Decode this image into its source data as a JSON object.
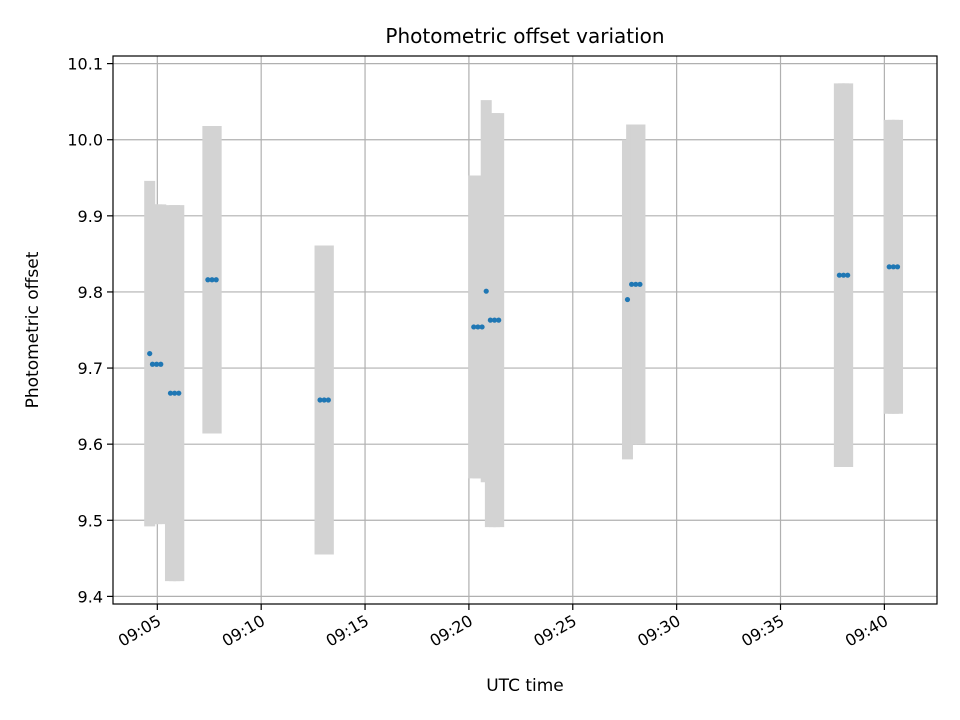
{
  "chart_data": {
    "type": "scatter",
    "title": "Photometric offset variation",
    "xlabel": "UTC time",
    "ylabel": "Photometric offset",
    "x_unit": "UTC time (HH:MM)",
    "xlim": [
      "09:02:52",
      "09:42:32"
    ],
    "ylim": [
      9.39,
      10.11
    ],
    "x_ticks": [
      "09:05",
      "09:10",
      "09:15",
      "09:20",
      "09:25",
      "09:30",
      "09:35",
      "09:40"
    ],
    "y_ticks": [
      "9.4",
      "9.5",
      "9.6",
      "9.7",
      "9.8",
      "9.9",
      "10.0",
      "10.1"
    ],
    "grid": true,
    "colors": {
      "points": "#1f77b4",
      "error_bars": "#d3d3d3",
      "grid": "#b0b0b0"
    },
    "points": [
      {
        "t": "09:04:38",
        "y": 9.719,
        "err": 0.227
      },
      {
        "t": "09:04:46",
        "y": 9.705,
        "err": 0.21
      },
      {
        "t": "09:04:58",
        "y": 9.705,
        "err": 0.21
      },
      {
        "t": "09:05:10",
        "y": 9.705,
        "err": 0.21
      },
      {
        "t": "09:05:38",
        "y": 9.667,
        "err": 0.247
      },
      {
        "t": "09:05:50",
        "y": 9.667,
        "err": 0.247
      },
      {
        "t": "09:06:02",
        "y": 9.667,
        "err": 0.247
      },
      {
        "t": "09:07:26",
        "y": 9.816,
        "err": 0.202
      },
      {
        "t": "09:07:38",
        "y": 9.816,
        "err": 0.202
      },
      {
        "t": "09:07:50",
        "y": 9.816,
        "err": 0.202
      },
      {
        "t": "09:12:50",
        "y": 9.658,
        "err": 0.203
      },
      {
        "t": "09:13:02",
        "y": 9.658,
        "err": 0.203
      },
      {
        "t": "09:13:14",
        "y": 9.658,
        "err": 0.203
      },
      {
        "t": "09:20:14",
        "y": 9.754,
        "err": 0.199
      },
      {
        "t": "09:20:26",
        "y": 9.754,
        "err": 0.199
      },
      {
        "t": "09:20:38",
        "y": 9.754,
        "err": 0.199
      },
      {
        "t": "09:20:50",
        "y": 9.801,
        "err": 0.251
      },
      {
        "t": "09:21:02",
        "y": 9.763,
        "err": 0.272
      },
      {
        "t": "09:21:14",
        "y": 9.763,
        "err": 0.272
      },
      {
        "t": "09:21:26",
        "y": 9.763,
        "err": 0.272
      },
      {
        "t": "09:27:38",
        "y": 9.79,
        "err": 0.21
      },
      {
        "t": "09:27:50",
        "y": 9.81,
        "err": 0.21
      },
      {
        "t": "09:28:02",
        "y": 9.81,
        "err": 0.21
      },
      {
        "t": "09:28:14",
        "y": 9.81,
        "err": 0.21
      },
      {
        "t": "09:37:50",
        "y": 9.822,
        "err": 0.252
      },
      {
        "t": "09:38:02",
        "y": 9.822,
        "err": 0.252
      },
      {
        "t": "09:38:14",
        "y": 9.822,
        "err": 0.252
      },
      {
        "t": "09:40:14",
        "y": 9.833,
        "err": 0.193
      },
      {
        "t": "09:40:26",
        "y": 9.833,
        "err": 0.193
      },
      {
        "t": "09:40:38",
        "y": 9.833,
        "err": 0.193
      }
    ]
  }
}
